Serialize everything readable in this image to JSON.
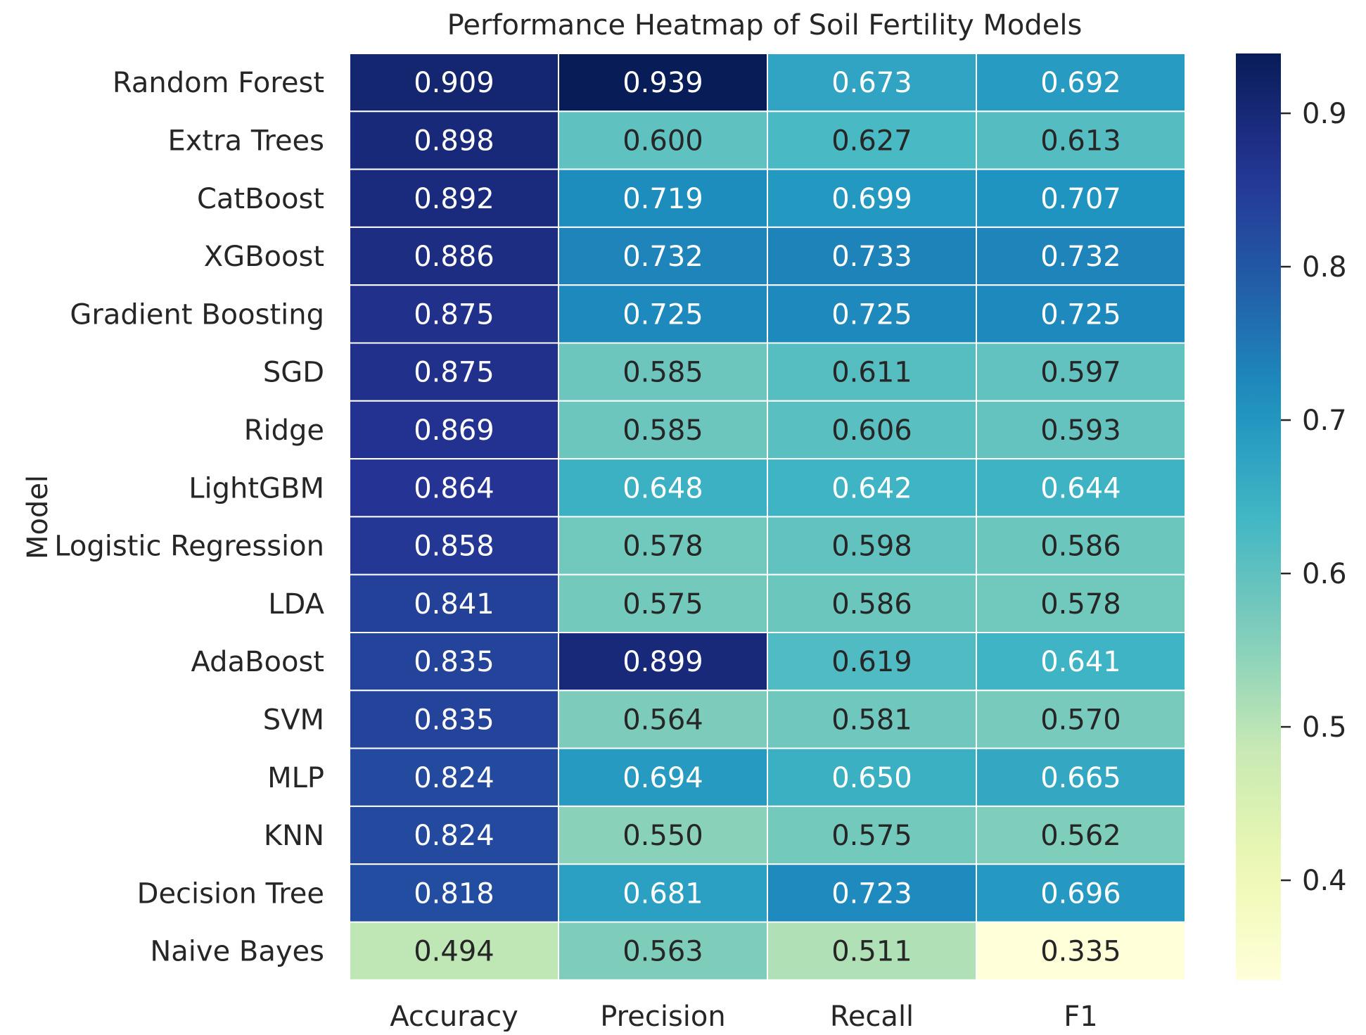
{
  "chart_data": {
    "type": "heatmap",
    "title": "Performance Heatmap of Soil Fertility Models",
    "ylabel": "Model",
    "xlabel": "",
    "columns": [
      "Accuracy",
      "Precision",
      "Recall",
      "F1"
    ],
    "rows": [
      {
        "label": "Random Forest",
        "values": [
          0.909,
          0.939,
          0.673,
          0.692
        ]
      },
      {
        "label": "Extra Trees",
        "values": [
          0.898,
          0.6,
          0.627,
          0.613
        ]
      },
      {
        "label": "CatBoost",
        "values": [
          0.892,
          0.719,
          0.699,
          0.707
        ]
      },
      {
        "label": "XGBoost",
        "values": [
          0.886,
          0.732,
          0.733,
          0.732
        ]
      },
      {
        "label": "Gradient Boosting",
        "values": [
          0.875,
          0.725,
          0.725,
          0.725
        ]
      },
      {
        "label": "SGD",
        "values": [
          0.875,
          0.585,
          0.611,
          0.597
        ]
      },
      {
        "label": "Ridge",
        "values": [
          0.869,
          0.585,
          0.606,
          0.593
        ]
      },
      {
        "label": "LightGBM",
        "values": [
          0.864,
          0.648,
          0.642,
          0.644
        ]
      },
      {
        "label": "Logistic Regression",
        "values": [
          0.858,
          0.578,
          0.598,
          0.586
        ]
      },
      {
        "label": "LDA",
        "values": [
          0.841,
          0.575,
          0.586,
          0.578
        ]
      },
      {
        "label": "AdaBoost",
        "values": [
          0.835,
          0.899,
          0.619,
          0.641
        ]
      },
      {
        "label": "SVM",
        "values": [
          0.835,
          0.564,
          0.581,
          0.57
        ]
      },
      {
        "label": "MLP",
        "values": [
          0.824,
          0.694,
          0.65,
          0.665
        ]
      },
      {
        "label": "KNN",
        "values": [
          0.824,
          0.55,
          0.575,
          0.562
        ]
      },
      {
        "label": "Decision Tree",
        "values": [
          0.818,
          0.681,
          0.723,
          0.696
        ]
      },
      {
        "label": "Naive Bayes",
        "values": [
          0.494,
          0.563,
          0.511,
          0.335
        ]
      }
    ],
    "colorscale": "YlGnBu",
    "vmin": 0.335,
    "vmax": 0.939,
    "colorbar_ticks": [
      0.4,
      0.5,
      0.6,
      0.7,
      0.8,
      0.9
    ],
    "value_format": "3 decimals",
    "grid": false,
    "colorbar_position": "right"
  }
}
